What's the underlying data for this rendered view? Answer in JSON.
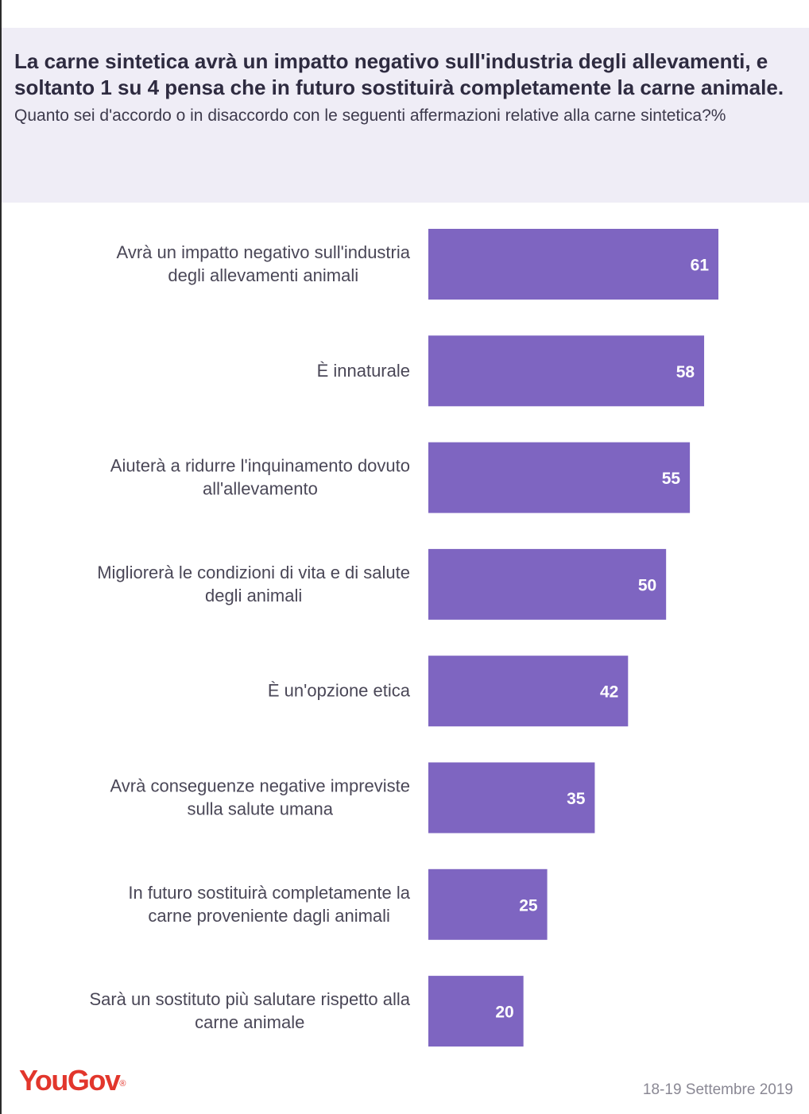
{
  "header": {
    "title": "La carne sintetica avrà un impatto negativo sull'industria degli allevamenti, e soltanto 1 su 4 pensa che in futuro sostituirà completamente la carne animale.",
    "subtitle": "Quanto sei d'accordo o in disaccordo con le seguenti affermazioni relative alla carne sintetica?%"
  },
  "footer": {
    "logo": "YouGov",
    "logo_mark": "®",
    "date": "18-19 Settembre 2019"
  },
  "colors": {
    "bar": "#7e65c1",
    "header_bg": "#efedf6",
    "logo": "#e2362c"
  },
  "chart_data": {
    "type": "bar",
    "orientation": "horizontal",
    "title": "La carne sintetica avrà un impatto negativo sull'industria degli allevamenti, e soltanto 1 su 4 pensa che in futuro sostituirà completamente la carne animale.",
    "subtitle": "Quanto sei d'accordo o in disaccordo con le seguenti affermazioni relative alla carne sintetica?%",
    "categories": [
      [
        "Avrà un impatto negativo sull'industria",
        "degli allevamenti animali"
      ],
      [
        "È innaturale"
      ],
      [
        "Aiuterà a ridurre l'inquinamento dovuto",
        "all'allevamento"
      ],
      [
        "Migliorerà le condizioni di vita e di salute",
        "degli animali"
      ],
      [
        "È un'opzione etica"
      ],
      [
        "Avrà conseguenze negative impreviste",
        "sulla salute umana"
      ],
      [
        "In futuro sostituirà completamente la",
        "carne proveniente dagli animali"
      ],
      [
        "Sarà un sostituto più salutare rispetto alla",
        "carne animale"
      ]
    ],
    "values": [
      61,
      58,
      55,
      50,
      42,
      35,
      25,
      20
    ],
    "xlim": [
      0,
      80
    ],
    "grid": false,
    "legend": "none"
  }
}
